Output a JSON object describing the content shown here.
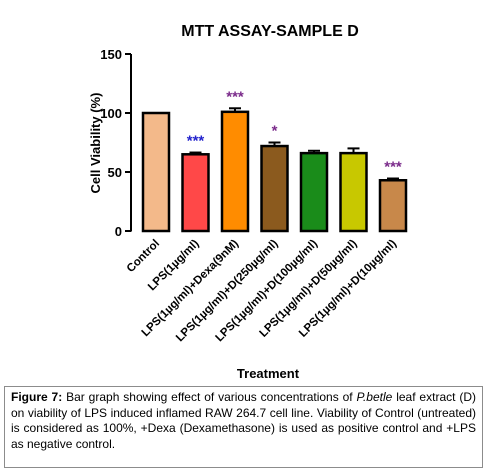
{
  "chart_data": {
    "type": "bar",
    "title": "MTT ASSAY-SAMPLE D",
    "xlabel": "Treatment",
    "ylabel": "Cell Viability (%)",
    "ylim": [
      0,
      150
    ],
    "yticks": [
      "0",
      "50",
      "100",
      "150"
    ],
    "grid": false,
    "legend": "none",
    "categories": [
      "Control",
      "LPS(1µg/ml)",
      "LPS(1µg/ml)+Dexa(9nM)",
      "LPS(1µg/ml)+D(250µg/ml)",
      "LPS(1µg/ml)+D(100µg/ml)",
      "LPS(1µg/ml)+D(50µg/ml)",
      "LPS(1µg/ml)+D(10µg/ml)"
    ],
    "values": [
      100,
      65,
      101,
      72,
      66,
      66,
      43
    ],
    "errors": [
      0,
      1.5,
      3,
      3,
      2,
      4,
      1.5
    ],
    "colors": [
      "#f3b98a",
      "#ff4848",
      "#ff8c00",
      "#8b5a1e",
      "#1a8c1a",
      "#c8c800",
      "#c8884a"
    ],
    "annotations": [
      "",
      "***",
      "***",
      "*",
      "",
      "",
      "***"
    ],
    "annotation_colors": [
      "",
      "#2222cc",
      "#7a2a8a",
      "#7a2a8a",
      "",
      "",
      "#7a2a8a"
    ]
  },
  "caption": {
    "label": "Figure 7:",
    "part1": " Bar graph showing effect of various concentrations of ",
    "species": "P.betle",
    "part2": " leaf extract (D) on viability of LPS induced inflamed RAW 264.7 cell line. Viability of Control (untreated) is considered as 100%, +Dexa (Dexamethasone) is used as positive control and +LPS as negative control."
  }
}
